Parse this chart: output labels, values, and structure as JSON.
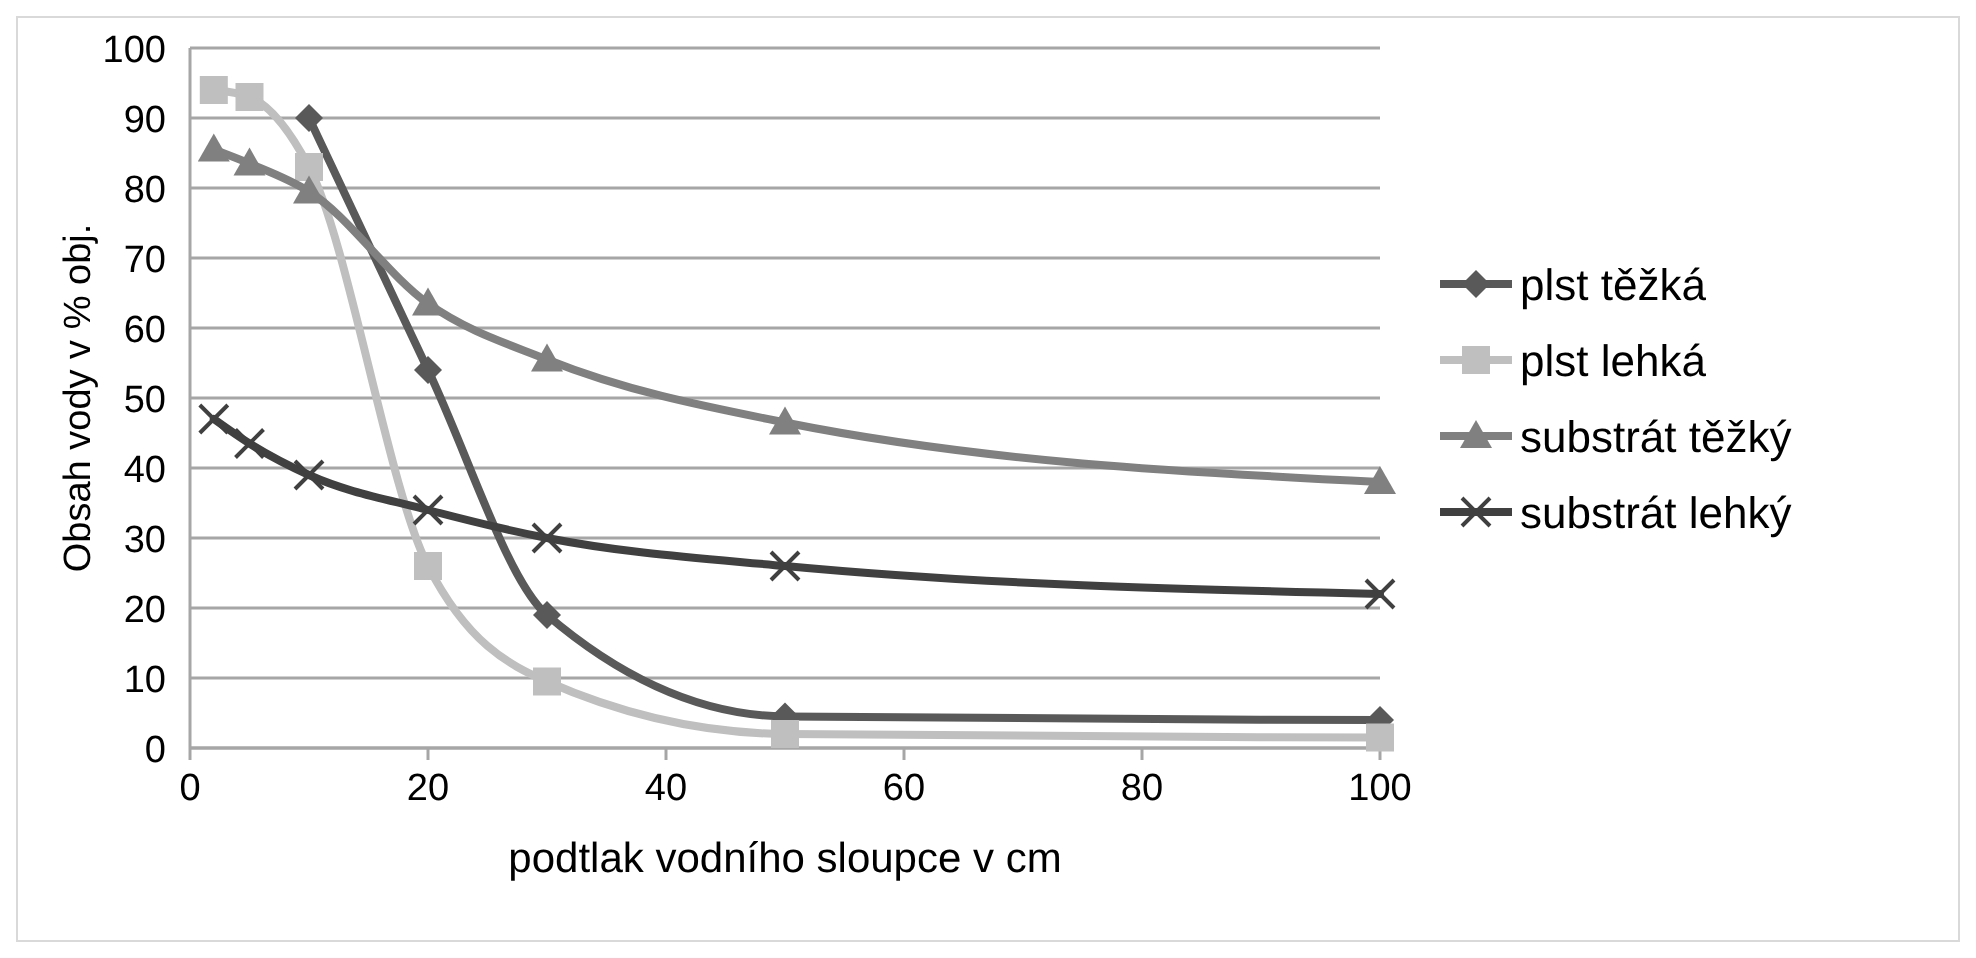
{
  "chart_data": {
    "type": "line",
    "xlabel": "podtlak vodního sloupce v cm",
    "ylabel": "Obsah vody v % obj.",
    "x": [
      2,
      5,
      10,
      20,
      30,
      50,
      100
    ],
    "xlim": [
      0,
      100
    ],
    "xticks": [
      0,
      20,
      40,
      60,
      80,
      100
    ],
    "ylim": [
      0,
      100
    ],
    "yticks": [
      0,
      10,
      20,
      30,
      40,
      50,
      60,
      70,
      80,
      90,
      100
    ],
    "grid": "y",
    "legend": "right",
    "series": [
      {
        "name": "plst těžká",
        "color": "#595959",
        "marker": "diamond",
        "values": [
          null,
          null,
          90,
          54,
          19,
          4.5,
          4
        ]
      },
      {
        "name": "plst lehká",
        "color": "#bfbfbf",
        "marker": "square",
        "values": [
          94,
          93,
          83,
          26,
          9.5,
          2,
          1.5
        ]
      },
      {
        "name": "substrát těžký",
        "color": "#808080",
        "marker": "triangle",
        "values": [
          85.5,
          83.5,
          79.5,
          63.5,
          55.5,
          46.5,
          38
        ]
      },
      {
        "name": "substrát lehký",
        "color": "#404040",
        "marker": "cross",
        "values": [
          47,
          43.5,
          39,
          34,
          30,
          26,
          22
        ]
      }
    ]
  }
}
